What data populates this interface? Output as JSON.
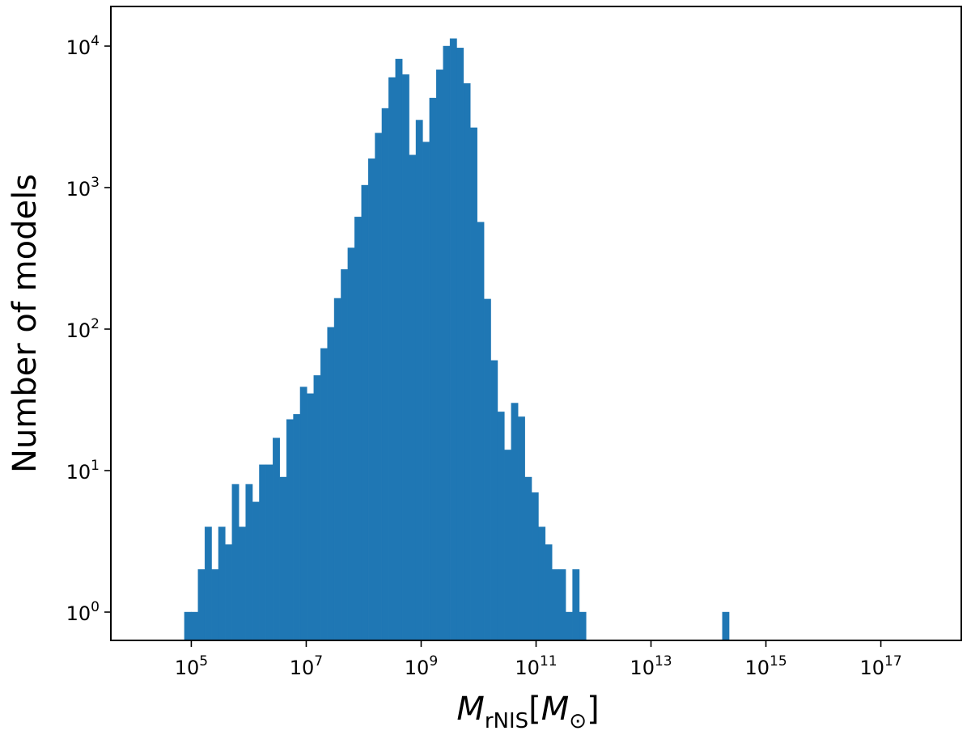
{
  "chart_data": {
    "type": "bar",
    "title": "",
    "xlabel": "M_rNIS [M_⊙]",
    "xlabel_parts": {
      "symbol": "M",
      "subscript": "rNIS",
      "open": "[",
      "unit_symbol": "M",
      "unit_subscript": "⊙",
      "close": "]"
    },
    "ylabel": "Number of models",
    "x_scale": "log",
    "y_scale": "log",
    "xlim_log10": [
      3.6,
      18.4
    ],
    "ylim_log10": [
      -0.2,
      4.28
    ],
    "bar_color": "#1f77b4",
    "grid": false,
    "x_ticks": [
      {
        "mantissa": "10",
        "exp": "5",
        "log10": 5
      },
      {
        "mantissa": "10",
        "exp": "7",
        "log10": 7
      },
      {
        "mantissa": "10",
        "exp": "9",
        "log10": 9
      },
      {
        "mantissa": "10",
        "exp": "11",
        "log10": 11
      },
      {
        "mantissa": "10",
        "exp": "13",
        "log10": 13
      },
      {
        "mantissa": "10",
        "exp": "15",
        "log10": 15
      },
      {
        "mantissa": "10",
        "exp": "17",
        "log10": 17
      }
    ],
    "y_ticks": [
      {
        "mantissa": "10",
        "exp": "0",
        "log10": 0
      },
      {
        "mantissa": "10",
        "exp": "1",
        "log10": 1
      },
      {
        "mantissa": "10",
        "exp": "2",
        "log10": 2
      },
      {
        "mantissa": "10",
        "exp": "3",
        "log10": 3
      },
      {
        "mantissa": "10",
        "exp": "4",
        "log10": 4
      }
    ],
    "bin_start_log10": 4.88,
    "bin_width_log10": 0.1185,
    "counts": [
      1,
      1,
      2,
      4,
      2,
      4,
      3,
      8,
      4,
      8,
      6,
      11,
      11,
      17,
      9,
      23,
      25,
      39,
      35,
      47,
      73,
      103,
      165,
      264,
      375,
      620,
      1040,
      1600,
      2430,
      3630,
      6000,
      8100,
      6300,
      1700,
      3000,
      2100,
      4300,
      6800,
      10000,
      11300,
      9700,
      5450,
      2650,
      570,
      163,
      60,
      26,
      14,
      30,
      24,
      9,
      7,
      4,
      3,
      2,
      2,
      1,
      2,
      1,
      0,
      0,
      0,
      0,
      0,
      0,
      0,
      0,
      0,
      0,
      0,
      0,
      0,
      0,
      0,
      0,
      0,
      0,
      0,
      0,
      1
    ]
  }
}
